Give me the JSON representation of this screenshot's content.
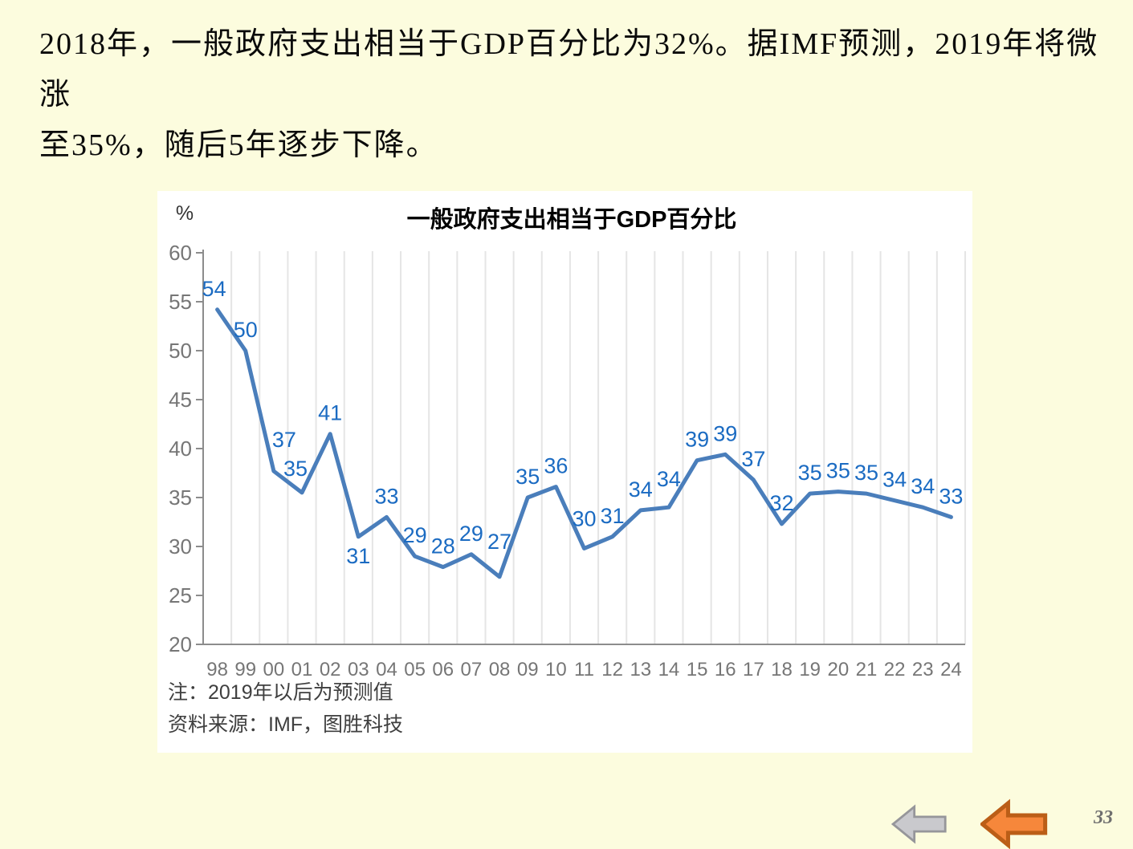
{
  "slide": {
    "background_color": "#FCFCDE",
    "headline_lines": [
      "2018年，一般政府支出相当于GDP百分比为32%。据IMF预测，2019年将微涨",
      "至35%，随后5年逐步下降。"
    ],
    "page_number": "33"
  },
  "chart_data": {
    "type": "line",
    "title": "一般政府支出相当于GDP百分比",
    "unit_label": "%",
    "categories": [
      "98",
      "99",
      "00",
      "01",
      "02",
      "03",
      "04",
      "05",
      "06",
      "07",
      "08",
      "09",
      "10",
      "11",
      "12",
      "13",
      "14",
      "15",
      "16",
      "17",
      "18",
      "19",
      "20",
      "21",
      "22",
      "23",
      "24"
    ],
    "values": [
      54,
      50,
      37,
      35,
      41,
      31,
      33,
      29,
      28,
      29,
      27,
      35,
      36,
      30,
      31,
      34,
      34,
      39,
      39,
      37,
      32,
      35,
      35,
      35,
      34,
      34,
      33
    ],
    "values_precise": [
      54.2,
      50,
      37.7,
      35.5,
      41.5,
      31,
      33,
      29,
      27.9,
      29.2,
      26.9,
      35,
      36.1,
      29.8,
      31,
      33.7,
      34,
      38.8,
      39.4,
      36.8,
      32.3,
      35.4,
      35.6,
      35.4,
      34.7,
      34,
      33
    ],
    "ylim": [
      20,
      60
    ],
    "yticks": [
      60,
      55,
      50,
      45,
      40,
      35,
      30,
      25,
      20
    ],
    "grid": "vertical-only",
    "legend": "none",
    "note": "注：2019年以后为预测值",
    "source": "资料来源：IMF，图胜科技",
    "colors": {
      "line": "#4A7EBB",
      "data_label": "#1B6BC2",
      "axis": "#8C8C8C",
      "axis_text": "#767676",
      "gridline": "#E5E5E5"
    },
    "label_offsets": {
      "0": [
        -4,
        0
      ],
      "2": [
        13,
        -13
      ],
      "3": [
        -8,
        -4
      ],
      "5": [
        0,
        50
      ],
      "10": [
        0,
        -18
      ],
      "13": [
        0,
        -11
      ],
      "16": [
        0,
        -9
      ]
    }
  },
  "nav": {
    "gray_arrow": {
      "fill": "#C9C9CD",
      "border": "#96969A"
    },
    "orange_arrow": {
      "fill": "#F6873B",
      "border": "#BB5E17"
    }
  }
}
